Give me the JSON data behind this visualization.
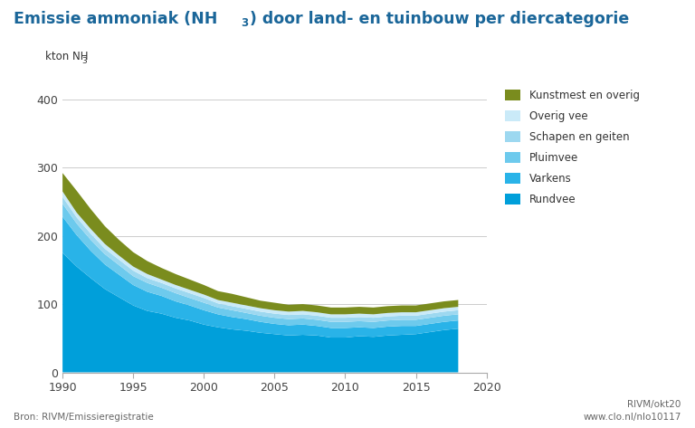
{
  "title": "Emissie ammoniak (NH₃) door land- en tuinbouw per diercategorie",
  "source": "Bron: RIVM/Emissieregistratie",
  "credit1": "RIVM/okt20",
  "credit2": "www.clo.nl/nlo10117",
  "background_color": "#ffffff",
  "years": [
    1990,
    1991,
    1992,
    1993,
    1994,
    1995,
    1996,
    1997,
    1998,
    1999,
    2000,
    2001,
    2002,
    2003,
    2004,
    2005,
    2006,
    2007,
    2008,
    2009,
    2010,
    2011,
    2012,
    2013,
    2014,
    2015,
    2016,
    2017,
    2018
  ],
  "rundvee": [
    175,
    155,
    138,
    122,
    110,
    98,
    90,
    86,
    80,
    76,
    70,
    66,
    63,
    61,
    58,
    56,
    54,
    55,
    54,
    51,
    51,
    53,
    52,
    54,
    55,
    56,
    59,
    62,
    64
  ],
  "varkens": [
    53,
    46,
    40,
    36,
    33,
    30,
    28,
    26,
    24,
    22,
    21,
    19,
    18,
    17,
    16,
    15,
    15,
    15,
    14,
    14,
    14,
    13,
    13,
    13,
    13,
    12,
    12,
    12,
    12
  ],
  "pluimvee": [
    19,
    17,
    16,
    15,
    14,
    13,
    13,
    12,
    12,
    11,
    11,
    10,
    10,
    9,
    9,
    9,
    9,
    9,
    9,
    9,
    9,
    9,
    9,
    9,
    9,
    9,
    9,
    9,
    9
  ],
  "schapen_geiten": [
    10,
    9,
    9,
    8,
    8,
    8,
    7,
    7,
    7,
    7,
    7,
    6,
    6,
    6,
    6,
    6,
    6,
    6,
    6,
    6,
    6,
    6,
    6,
    6,
    6,
    6,
    6,
    6,
    6
  ],
  "overig_vee": [
    8,
    7,
    7,
    7,
    6,
    6,
    6,
    5,
    5,
    5,
    5,
    5,
    5,
    5,
    5,
    5,
    5,
    5,
    5,
    5,
    5,
    5,
    5,
    5,
    5,
    5,
    5,
    5,
    5
  ],
  "kunstmest_overig": [
    27,
    32,
    29,
    26,
    23,
    21,
    19,
    17,
    16,
    15,
    14,
    13,
    13,
    12,
    11,
    11,
    10,
    10,
    10,
    10,
    10,
    10,
    10,
    10,
    10,
    10,
    10,
    10,
    10
  ],
  "colors": {
    "rundvee": "#009fda",
    "varkens": "#29b3e8",
    "pluimvee": "#6dcaed",
    "schapen_geiten": "#9dd8f0",
    "overig_vee": "#caeaf8",
    "kunstmest_overig": "#7a8c1e"
  },
  "legend_labels": [
    "Kunstmest en overig",
    "Overig vee",
    "Schapen en geiten",
    "Pluimvee",
    "Varkens",
    "Rundvee"
  ],
  "legend_colors": [
    "#7a8c1e",
    "#caeaf8",
    "#9dd8f0",
    "#6dcaed",
    "#29b3e8",
    "#009fda"
  ],
  "ylim": [
    0,
    420
  ],
  "yticks": [
    0,
    100,
    200,
    300,
    400
  ],
  "xlim": [
    1990,
    2020
  ],
  "xticks": [
    1990,
    1995,
    2000,
    2005,
    2010,
    2015,
    2020
  ],
  "title_color": "#1a6699",
  "tick_color": "#444444",
  "grid_color": "#cccccc"
}
